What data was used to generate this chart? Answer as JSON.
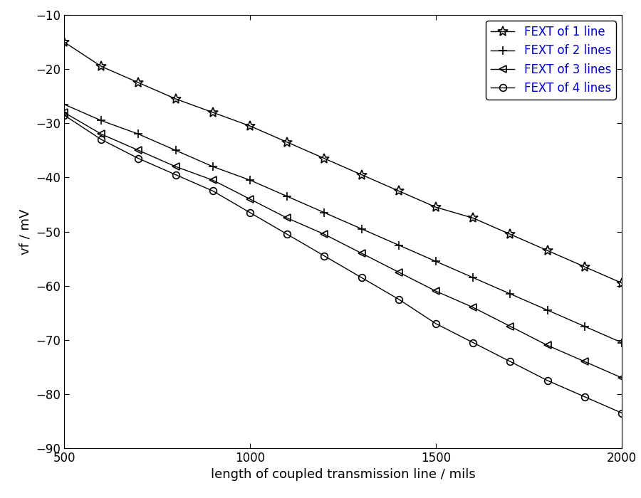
{
  "xlabel": "length of coupled transmission line / mils",
  "ylabel": "vf / mV",
  "xlim": [
    500,
    2000
  ],
  "ylim": [
    -90,
    -10
  ],
  "yticks": [
    -90,
    -80,
    -70,
    -60,
    -50,
    -40,
    -30,
    -20,
    -10
  ],
  "xticks": [
    500,
    1000,
    1500,
    2000
  ],
  "series": [
    {
      "label": "FEXT of 1 line",
      "x": [
        500,
        600,
        700,
        800,
        900,
        1000,
        1100,
        1200,
        1300,
        1400,
        1500,
        1600,
        1700,
        1800,
        1900,
        2000
      ],
      "y": [
        -15.0,
        -19.5,
        -22.5,
        -25.5,
        -28.0,
        -30.5,
        -33.5,
        -36.5,
        -39.5,
        -42.5,
        -45.5,
        -47.5,
        -50.5,
        -53.5,
        -56.5,
        -59.5
      ],
      "marker": "*",
      "markersize": 10,
      "markerfacecolor": "none",
      "color": "#000000",
      "linewidth": 1.0
    },
    {
      "label": "FEXT of 2 lines",
      "x": [
        500,
        600,
        700,
        800,
        900,
        1000,
        1100,
        1200,
        1300,
        1400,
        1500,
        1600,
        1700,
        1800,
        1900,
        2000
      ],
      "y": [
        -26.5,
        -29.5,
        -32.0,
        -35.0,
        -38.0,
        -40.5,
        -43.5,
        -46.5,
        -49.5,
        -52.5,
        -55.5,
        -58.5,
        -61.5,
        -64.5,
        -67.5,
        -70.5
      ],
      "marker": "+",
      "markersize": 9,
      "markerfacecolor": "none",
      "color": "#000000",
      "linewidth": 1.0
    },
    {
      "label": "FEXT of 3 lines",
      "x": [
        500,
        600,
        700,
        800,
        900,
        1000,
        1100,
        1200,
        1300,
        1400,
        1500,
        1600,
        1700,
        1800,
        1900,
        2000
      ],
      "y": [
        -28.0,
        -32.0,
        -35.0,
        -38.0,
        -40.5,
        -44.0,
        -47.5,
        -50.5,
        -54.0,
        -57.5,
        -61.0,
        -64.0,
        -67.5,
        -71.0,
        -74.0,
        -77.0
      ],
      "marker": "<",
      "markersize": 7,
      "markerfacecolor": "none",
      "color": "#000000",
      "linewidth": 1.0
    },
    {
      "label": "FEXT of 4 lines",
      "x": [
        500,
        600,
        700,
        800,
        900,
        1000,
        1100,
        1200,
        1300,
        1400,
        1500,
        1600,
        1700,
        1800,
        1900,
        2000
      ],
      "y": [
        -28.5,
        -33.0,
        -36.5,
        -39.5,
        -42.5,
        -46.5,
        -50.5,
        -54.5,
        -58.5,
        -62.5,
        -67.0,
        -70.5,
        -74.0,
        -77.5,
        -80.5,
        -83.5
      ],
      "marker": "o",
      "markersize": 7,
      "markerfacecolor": "none",
      "color": "#000000",
      "linewidth": 1.0
    }
  ],
  "legend_fontsize": 12,
  "axis_label_fontsize": 13,
  "tick_fontsize": 12,
  "background_color": "#ffffff",
  "legend_text_color": "#0000cc",
  "figure_width": 9.0,
  "figure_height": 7.0
}
